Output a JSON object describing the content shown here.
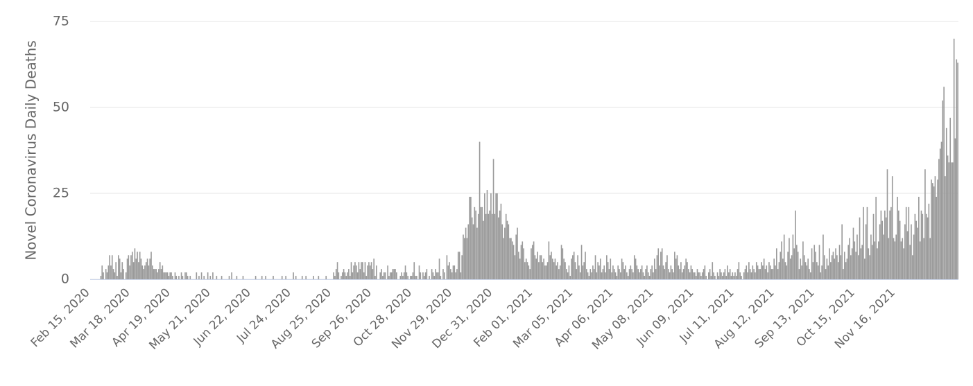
{
  "chart_data": {
    "type": "bar",
    "y_label": "Novel Coronavirus Daily Deaths",
    "color": "#9a9a9a",
    "grid": true,
    "ylim": [
      0,
      75
    ],
    "yticks": [
      0,
      25,
      50,
      75
    ],
    "categories": [
      "Feb 15, 2020",
      null,
      null,
      null,
      null,
      null,
      null,
      null,
      null,
      null,
      null,
      null,
      null,
      null,
      null,
      null,
      null,
      null,
      null,
      null,
      null,
      null,
      null,
      null,
      null,
      null,
      null,
      null,
      null,
      null,
      null,
      null,
      "Mar 18, 2020",
      null,
      null,
      null,
      null,
      null,
      null,
      null,
      null,
      null,
      null,
      null,
      null,
      null,
      null,
      null,
      null,
      null,
      null,
      null,
      null,
      null,
      null,
      null,
      null,
      null,
      null,
      null,
      null,
      null,
      null,
      null,
      "Apr 19, 2020",
      null,
      null,
      null,
      null,
      null,
      null,
      null,
      null,
      null,
      null,
      null,
      null,
      null,
      null,
      null,
      null,
      null,
      null,
      null,
      null,
      null,
      null,
      null,
      null,
      null,
      null,
      null,
      null,
      null,
      null,
      null,
      "May 21, 2020",
      null,
      null,
      null,
      null,
      null,
      null,
      null,
      null,
      null,
      null,
      null,
      null,
      null,
      null,
      null,
      null,
      null,
      null,
      null,
      null,
      null,
      null,
      null,
      null,
      null,
      null,
      null,
      null,
      null,
      null,
      null,
      "Jun 22, 2020",
      null,
      null,
      null,
      null,
      null,
      null,
      null,
      null,
      null,
      null,
      null,
      null,
      null,
      null,
      null,
      null,
      null,
      null,
      null,
      null,
      null,
      null,
      null,
      null,
      null,
      null,
      null,
      null,
      null,
      null,
      null,
      "Jul 24, 2020",
      null,
      null,
      null,
      null,
      null,
      null,
      null,
      null,
      null,
      null,
      null,
      null,
      null,
      null,
      null,
      null,
      null,
      null,
      null,
      null,
      null,
      null,
      null,
      null,
      null,
      null,
      null,
      null,
      null,
      null,
      null,
      "Aug 25, 2020",
      null,
      null,
      null,
      null,
      null,
      null,
      null,
      null,
      null,
      null,
      null,
      null,
      null,
      null,
      null,
      null,
      null,
      null,
      null,
      null,
      null,
      null,
      null,
      null,
      null,
      null,
      null,
      null,
      null,
      null,
      null,
      "Sep 26, 2020",
      null,
      null,
      null,
      null,
      null,
      null,
      null,
      null,
      null,
      null,
      null,
      null,
      null,
      null,
      null,
      null,
      null,
      null,
      null,
      null,
      null,
      null,
      null,
      null,
      null,
      null,
      null,
      null,
      null,
      null,
      null,
      "Oct 28, 2020",
      null,
      null,
      null,
      null,
      null,
      null,
      null,
      null,
      null,
      null,
      null,
      null,
      null,
      null,
      null,
      null,
      null,
      null,
      null,
      null,
      null,
      null,
      null,
      null,
      null,
      null,
      null,
      null,
      null,
      null,
      null,
      "Nov 29, 2020",
      null,
      null,
      null,
      null,
      null,
      null,
      null,
      null,
      null,
      null,
      null,
      null,
      null,
      null,
      null,
      null,
      null,
      null,
      null,
      null,
      null,
      null,
      null,
      null,
      null,
      null,
      null,
      null,
      null,
      null,
      null,
      "Dec 31, 2020",
      null,
      null,
      null,
      null,
      null,
      null,
      null,
      null,
      null,
      null,
      null,
      null,
      null,
      null,
      null,
      null,
      null,
      null,
      null,
      null,
      null,
      null,
      null,
      null,
      null,
      null,
      null,
      null,
      null,
      null,
      null,
      "Feb 01, 2021",
      null,
      null,
      null,
      null,
      null,
      null,
      null,
      null,
      null,
      null,
      null,
      null,
      null,
      null,
      null,
      null,
      null,
      null,
      null,
      null,
      null,
      null,
      null,
      null,
      null,
      null,
      null,
      null,
      null,
      null,
      null,
      "Mar 05, 2021",
      null,
      null,
      null,
      null,
      null,
      null,
      null,
      null,
      null,
      null,
      null,
      null,
      null,
      null,
      null,
      null,
      null,
      null,
      null,
      null,
      null,
      null,
      null,
      null,
      null,
      null,
      null,
      null,
      null,
      null,
      null,
      "Apr 06, 2021",
      null,
      null,
      null,
      null,
      null,
      null,
      null,
      null,
      null,
      null,
      null,
      null,
      null,
      null,
      null,
      null,
      null,
      null,
      null,
      null,
      null,
      null,
      null,
      null,
      null,
      null,
      null,
      null,
      null,
      null,
      null,
      "May 08, 2021",
      null,
      null,
      null,
      null,
      null,
      null,
      null,
      null,
      null,
      null,
      null,
      null,
      null,
      null,
      null,
      null,
      null,
      null,
      null,
      null,
      null,
      null,
      null,
      null,
      null,
      null,
      null,
      null,
      null,
      null,
      null,
      "Jun 09, 2021",
      null,
      null,
      null,
      null,
      null,
      null,
      null,
      null,
      null,
      null,
      null,
      null,
      null,
      null,
      null,
      null,
      null,
      null,
      null,
      null,
      null,
      null,
      null,
      null,
      null,
      null,
      null,
      null,
      null,
      null,
      null,
      "Jul 11, 2021",
      null,
      null,
      null,
      null,
      null,
      null,
      null,
      null,
      null,
      null,
      null,
      null,
      null,
      null,
      null,
      null,
      null,
      null,
      null,
      null,
      null,
      null,
      null,
      null,
      null,
      null,
      null,
      null,
      null,
      null,
      null,
      "Aug 12, 2021",
      null,
      null,
      null,
      null,
      null,
      null,
      null,
      null,
      null,
      null,
      null,
      null,
      null,
      null,
      null,
      null,
      null,
      null,
      null,
      null,
      null,
      null,
      null,
      null,
      null,
      null,
      null,
      null,
      null,
      null,
      null,
      "Sep 13, 2021",
      null,
      null,
      null,
      null,
      null,
      null,
      null,
      null,
      null,
      null,
      null,
      null,
      null,
      null,
      null,
      null,
      null,
      null,
      null,
      null,
      null,
      null,
      null,
      null,
      null,
      null,
      null,
      null,
      null,
      null,
      null,
      "Oct 15, 2021",
      null,
      null,
      null,
      null,
      null,
      null,
      null,
      null,
      null,
      null,
      null,
      null,
      null,
      null,
      null,
      null,
      null,
      null,
      null,
      null,
      null,
      null,
      null,
      null,
      null,
      null,
      null,
      null,
      null,
      null,
      null,
      "Nov 16, 2021",
      null,
      null,
      null,
      null,
      null,
      null,
      null,
      null,
      null,
      null,
      null,
      null,
      null,
      null,
      null,
      null,
      null,
      null,
      null,
      null,
      null,
      null,
      null,
      null,
      null,
      null,
      null,
      null,
      null,
      null,
      null,
      null,
      null,
      null,
      null,
      null,
      null,
      null,
      null,
      null,
      null,
      null,
      null,
      null,
      null,
      null,
      null,
      null,
      null
    ],
    "values": [
      0,
      0,
      0,
      0,
      0,
      0,
      0,
      0,
      1,
      4,
      2,
      0,
      3,
      2,
      4,
      7,
      4,
      7,
      3,
      2,
      5,
      1,
      7,
      6,
      2,
      5,
      3,
      0,
      2,
      6,
      7,
      4,
      7,
      8,
      5,
      9,
      6,
      8,
      5,
      8,
      6,
      4,
      3,
      4,
      5,
      6,
      4,
      6,
      8,
      4,
      3,
      3,
      3,
      2,
      3,
      5,
      3,
      4,
      2,
      2,
      2,
      2,
      1,
      2,
      2,
      1,
      0,
      2,
      1,
      0,
      1,
      0,
      2,
      1,
      0,
      2,
      2,
      1,
      0,
      1,
      0,
      0,
      0,
      0,
      2,
      0,
      1,
      0,
      2,
      0,
      1,
      0,
      0,
      2,
      0,
      1,
      0,
      2,
      0,
      0,
      1,
      0,
      0,
      0,
      1,
      0,
      0,
      0,
      0,
      0,
      1,
      0,
      2,
      0,
      0,
      0,
      1,
      0,
      0,
      0,
      0,
      1,
      0,
      0,
      0,
      0,
      0,
      0,
      0,
      0,
      0,
      1,
      0,
      0,
      0,
      0,
      1,
      0,
      0,
      1,
      0,
      0,
      0,
      0,
      0,
      1,
      0,
      0,
      0,
      0,
      0,
      0,
      1,
      0,
      0,
      1,
      0,
      0,
      0,
      0,
      0,
      2,
      0,
      1,
      0,
      0,
      0,
      0,
      1,
      0,
      0,
      1,
      0,
      0,
      0,
      0,
      0,
      1,
      0,
      0,
      0,
      1,
      0,
      0,
      0,
      0,
      0,
      1,
      0,
      0,
      0,
      0,
      0,
      2,
      1,
      3,
      5,
      2,
      0,
      1,
      2,
      3,
      2,
      1,
      2,
      3,
      1,
      5,
      2,
      4,
      5,
      4,
      2,
      5,
      3,
      5,
      5,
      2,
      5,
      1,
      4,
      5,
      4,
      5,
      3,
      6,
      1,
      4,
      0,
      0,
      2,
      3,
      1,
      2,
      2,
      0,
      4,
      1,
      2,
      2,
      3,
      3,
      3,
      2,
      0,
      0,
      1,
      2,
      1,
      2,
      4,
      2,
      1,
      0,
      1,
      1,
      2,
      5,
      1,
      1,
      0,
      4,
      2,
      0,
      2,
      1,
      2,
      3,
      0,
      1,
      0,
      3,
      2,
      1,
      3,
      2,
      2,
      6,
      1,
      0,
      3,
      2,
      0,
      7,
      4,
      5,
      3,
      2,
      4,
      4,
      2,
      3,
      8,
      8,
      2,
      7,
      13,
      12,
      15,
      12,
      16,
      24,
      24,
      18,
      16,
      21,
      20,
      15,
      19,
      40,
      21,
      21,
      17,
      25,
      19,
      26,
      19,
      20,
      25,
      19,
      35,
      19,
      25,
      25,
      18,
      20,
      22,
      16,
      12,
      15,
      19,
      17,
      16,
      12,
      12,
      11,
      10,
      7,
      13,
      15,
      8,
      6,
      10,
      11,
      9,
      5,
      6,
      5,
      4,
      3,
      9,
      10,
      11,
      7,
      6,
      8,
      5,
      7,
      7,
      5,
      6,
      4,
      4,
      5,
      11,
      7,
      8,
      6,
      5,
      6,
      4,
      5,
      3,
      4,
      10,
      9,
      6,
      5,
      3,
      2,
      4,
      1,
      6,
      7,
      8,
      5,
      3,
      7,
      4,
      2,
      10,
      4,
      5,
      8,
      3,
      2,
      1,
      3,
      2,
      4,
      3,
      7,
      2,
      5,
      4,
      6,
      2,
      3,
      4,
      2,
      7,
      5,
      3,
      6,
      2,
      4,
      3,
      2,
      1,
      4,
      3,
      2,
      6,
      5,
      3,
      4,
      2,
      1,
      3,
      4,
      3,
      2,
      7,
      6,
      4,
      3,
      2,
      3,
      4,
      2,
      1,
      3,
      4,
      2,
      1,
      3,
      4,
      2,
      6,
      3,
      7,
      9,
      4,
      8,
      9,
      4,
      3,
      5,
      7,
      3,
      2,
      4,
      3,
      2,
      8,
      6,
      7,
      4,
      3,
      5,
      2,
      3,
      4,
      6,
      5,
      3,
      2,
      4,
      3,
      2,
      2,
      1,
      3,
      2,
      2,
      1,
      2,
      3,
      4,
      1,
      0,
      2,
      3,
      1,
      5,
      2,
      1,
      0,
      2,
      1,
      3,
      2,
      1,
      2,
      3,
      1,
      4,
      2,
      3,
      1,
      2,
      1,
      2,
      1,
      3,
      5,
      2,
      1,
      0,
      2,
      3,
      4,
      2,
      5,
      3,
      2,
      4,
      3,
      2,
      5,
      4,
      3,
      3,
      5,
      4,
      6,
      3,
      4,
      2,
      5,
      4,
      3,
      3,
      6,
      4,
      9,
      3,
      5,
      8,
      11,
      6,
      13,
      5,
      4,
      8,
      12,
      6,
      7,
      13,
      9,
      20,
      10,
      8,
      3,
      6,
      4,
      11,
      7,
      5,
      4,
      6,
      3,
      2,
      9,
      5,
      10,
      8,
      5,
      4,
      10,
      2,
      4,
      13,
      7,
      3,
      6,
      4,
      9,
      5,
      7,
      8,
      6,
      9,
      7,
      5,
      10,
      7,
      16,
      3,
      8,
      5,
      6,
      10,
      12,
      7,
      9,
      15,
      11,
      8,
      13,
      7,
      18,
      9,
      10,
      21,
      6,
      16,
      21,
      9,
      7,
      13,
      10,
      19,
      11,
      24,
      9,
      11,
      16,
      20,
      17,
      13,
      20,
      18,
      32,
      12,
      20,
      21,
      30,
      12,
      11,
      13,
      24,
      20,
      17,
      11,
      12,
      9,
      16,
      21,
      14,
      21,
      10,
      16,
      7,
      13,
      19,
      17,
      15,
      24,
      11,
      20,
      19,
      12,
      32,
      19,
      18,
      22,
      12,
      29,
      28,
      27,
      30,
      24,
      29,
      35,
      38,
      40,
      52,
      56,
      30,
      44,
      36,
      34,
      47,
      34,
      34,
      70,
      41,
      64,
      63
    ]
  }
}
